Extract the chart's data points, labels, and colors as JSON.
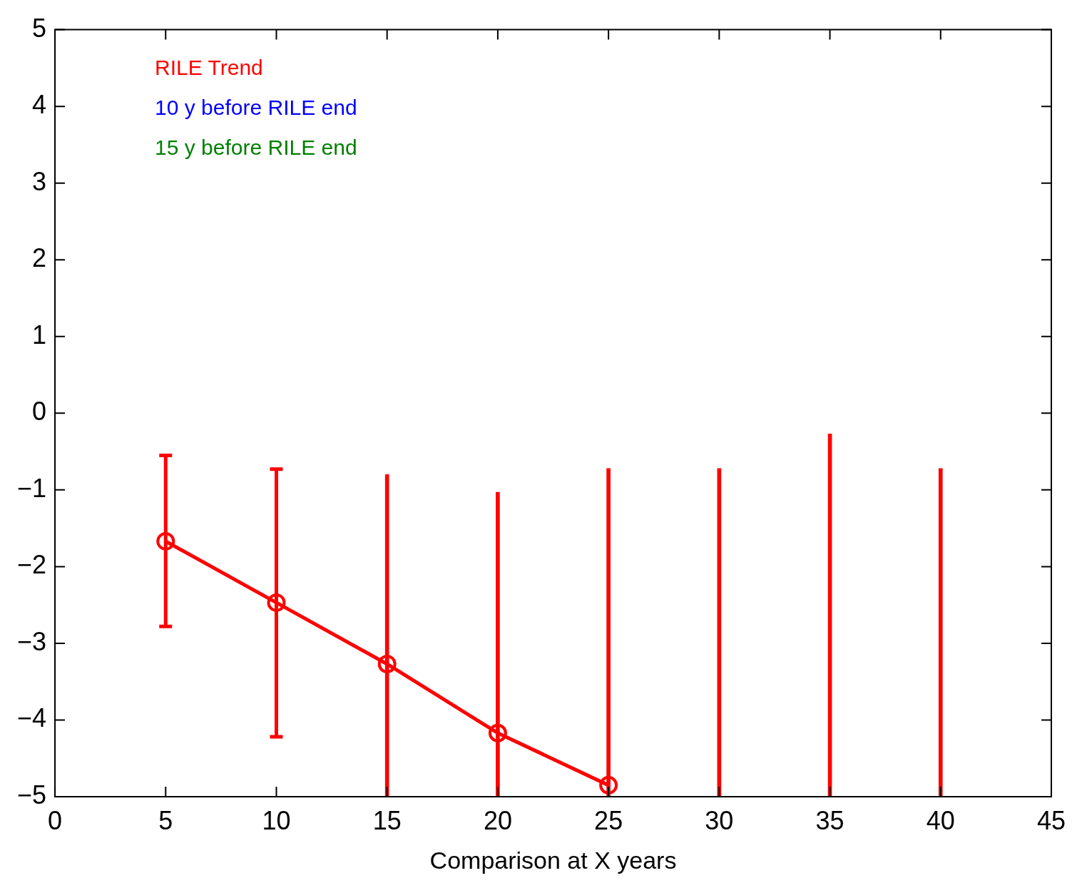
{
  "chart_data": {
    "type": "line",
    "xlabel": "Comparison at X years",
    "x": [
      5,
      10,
      15,
      20,
      25
    ],
    "series": [
      {
        "name": "RILE Trend",
        "color": "#ff0000",
        "values": [
          -1.67,
          -2.47,
          -3.27,
          -4.17,
          -4.85
        ],
        "errors": [
          [
            -2.78,
            -0.55
          ],
          [
            -4.22,
            -0.73
          ],
          null,
          null,
          null
        ]
      },
      {
        "type": "bar",
        "color": "#ff0000",
        "x": [
          15,
          20,
          25,
          30,
          35,
          40
        ],
        "base": [
          -5,
          -5,
          -5,
          -5,
          -5,
          -5
        ],
        "values": [
          4.2,
          3.97,
          4.28,
          4.28,
          4.73,
          4.28
        ]
      },
      {
        "name": "10 y before RILE end",
        "color": "#0000ff",
        "values": [
          null,
          null,
          null,
          null,
          null
        ]
      },
      {
        "name": "15 y before RILE end",
        "color": "#008000",
        "values": [
          null,
          null,
          null,
          null,
          null
        ]
      }
    ],
    "xlim": [
      0,
      45
    ],
    "xticks": [
      0,
      5,
      10,
      15,
      20,
      25,
      30,
      35,
      40,
      45
    ],
    "ylim": [
      -5,
      5
    ],
    "yticks": [
      -5,
      -4,
      -3,
      -2,
      -1,
      0,
      1,
      2,
      3,
      4,
      5
    ],
    "grid": false,
    "legend": "top left",
    "marker": "circle",
    "line_style": "solid"
  }
}
